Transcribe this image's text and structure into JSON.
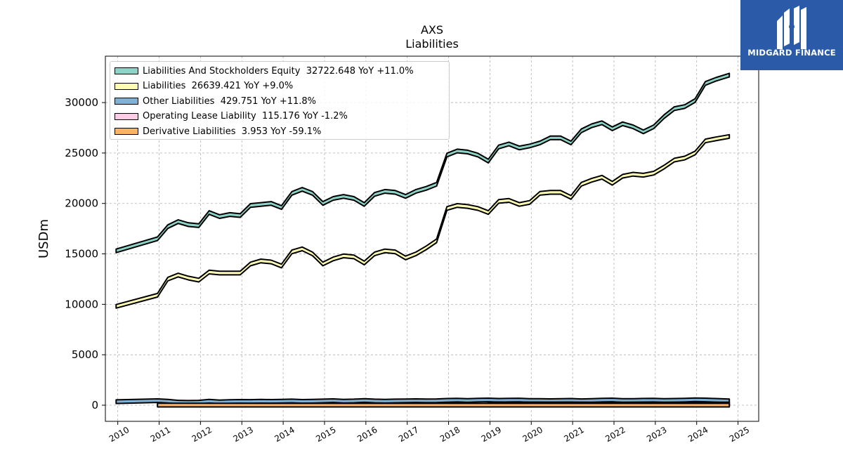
{
  "chart_data": {
    "type": "area",
    "title": "AXS",
    "subtitle": "Liabilities",
    "xlabel": "",
    "ylabel": "USDm",
    "xlim": [
      2009.7,
      2025.5
    ],
    "ylim": [
      -1600,
      34600
    ],
    "x_ticks": [
      "2010",
      "2011",
      "2012",
      "2013",
      "2014",
      "2015",
      "2016",
      "2017",
      "2018",
      "2019",
      "2020",
      "2021",
      "2022",
      "2023",
      "2024",
      "2025"
    ],
    "y_ticks": [
      0,
      5000,
      10000,
      15000,
      20000,
      25000,
      30000
    ],
    "grid": true,
    "legend_position": "top-left",
    "series": [
      {
        "name": "Liabilities And Stockholders Equity",
        "legend_label": "Liabilities And Stockholders Equity  32722.648 YoY +11.0%",
        "color": "#8dd3c7",
        "x": [
          2009.96,
          2010.96,
          2011.21,
          2011.46,
          2011.71,
          2011.96,
          2012.21,
          2012.46,
          2012.71,
          2012.96,
          2013.21,
          2013.46,
          2013.71,
          2013.96,
          2014.21,
          2014.46,
          2014.71,
          2014.96,
          2015.21,
          2015.46,
          2015.71,
          2015.96,
          2016.21,
          2016.46,
          2016.71,
          2016.96,
          2017.21,
          2017.46,
          2017.71,
          2017.96,
          2018.21,
          2018.46,
          2018.71,
          2018.96,
          2019.21,
          2019.46,
          2019.71,
          2019.96,
          2020.21,
          2020.46,
          2020.71,
          2020.96,
          2021.21,
          2021.46,
          2021.71,
          2021.96,
          2022.21,
          2022.46,
          2022.71,
          2022.96,
          2023.21,
          2023.46,
          2023.71,
          2023.96,
          2024.21,
          2024.46,
          2024.79
        ],
        "values": [
          15300,
          16500,
          17700,
          18200,
          17900,
          17800,
          19100,
          18700,
          18900,
          18800,
          19800,
          19900,
          20000,
          19600,
          21000,
          21400,
          21000,
          20000,
          20500,
          20700,
          20500,
          19900,
          20900,
          21200,
          21100,
          20700,
          21200,
          21500,
          21900,
          24800,
          25200,
          25100,
          24800,
          24200,
          25600,
          25900,
          25500,
          25700,
          26000,
          26500,
          26500,
          26000,
          27200,
          27700,
          28000,
          27400,
          27900,
          27600,
          27100,
          27600,
          28600,
          29400,
          29600,
          30200,
          31900,
          32300,
          32722.648
        ]
      },
      {
        "name": "Liabilities",
        "legend_label": "Liabilities  26639.421 YoY +9.0%",
        "color": "#ffffb3",
        "x": [
          2009.96,
          2010.96,
          2011.21,
          2011.46,
          2011.71,
          2011.96,
          2012.21,
          2012.46,
          2012.71,
          2012.96,
          2013.21,
          2013.46,
          2013.71,
          2013.96,
          2014.21,
          2014.46,
          2014.71,
          2014.96,
          2015.21,
          2015.46,
          2015.71,
          2015.96,
          2016.21,
          2016.46,
          2016.71,
          2016.96,
          2017.21,
          2017.46,
          2017.71,
          2017.96,
          2018.21,
          2018.46,
          2018.71,
          2018.96,
          2019.21,
          2019.46,
          2019.71,
          2019.96,
          2020.21,
          2020.46,
          2020.71,
          2020.96,
          2021.21,
          2021.46,
          2021.71,
          2021.96,
          2022.21,
          2022.46,
          2022.71,
          2022.96,
          2023.21,
          2023.46,
          2023.71,
          2023.96,
          2024.21,
          2024.46,
          2024.79
        ],
        "values": [
          9800,
          10900,
          12500,
          12900,
          12600,
          12400,
          13200,
          13100,
          13100,
          13100,
          14000,
          14300,
          14200,
          13800,
          15200,
          15500,
          15000,
          14000,
          14500,
          14800,
          14700,
          14100,
          15000,
          15300,
          15200,
          14600,
          15000,
          15600,
          16300,
          19500,
          19800,
          19700,
          19500,
          19100,
          20200,
          20300,
          19900,
          20100,
          21000,
          21100,
          21100,
          20600,
          21900,
          22300,
          22600,
          22000,
          22700,
          22900,
          22800,
          23000,
          23600,
          24300,
          24500,
          25000,
          26200,
          26400,
          26639.421
        ]
      },
      {
        "name": "Other Liabilities",
        "legend_label": "Other Liabilities  429.751 YoY +11.8%",
        "color": "#80b1d3",
        "x": [
          2009.96,
          2010.96,
          2011.21,
          2011.46,
          2011.71,
          2011.96,
          2012.21,
          2012.46,
          2012.71,
          2012.96,
          2013.21,
          2013.46,
          2013.71,
          2013.96,
          2014.21,
          2014.46,
          2014.71,
          2014.96,
          2015.21,
          2015.46,
          2015.71,
          2015.96,
          2016.21,
          2016.46,
          2016.71,
          2016.96,
          2017.21,
          2017.46,
          2017.71,
          2017.96,
          2018.21,
          2018.46,
          2018.71,
          2018.96,
          2019.21,
          2019.46,
          2019.71,
          2019.96,
          2020.21,
          2020.46,
          2020.71,
          2020.96,
          2021.21,
          2021.46,
          2021.71,
          2021.96,
          2022.21,
          2022.46,
          2022.71,
          2022.96,
          2023.21,
          2023.46,
          2023.71,
          2023.96,
          2024.21,
          2024.46,
          2024.79
        ],
        "values": [
          350,
          450,
          400,
          300,
          280,
          300,
          400,
          320,
          360,
          380,
          370,
          390,
          380,
          400,
          420,
          380,
          390,
          420,
          450,
          400,
          420,
          470,
          420,
          400,
          420,
          430,
          450,
          430,
          440,
          480,
          500,
          470,
          500,
          520,
          480,
          500,
          510,
          470,
          470,
          450,
          470,
          480,
          440,
          460,
          500,
          520,
          460,
          470,
          490,
          500,
          460,
          480,
          500,
          540,
          520,
          480,
          429.751
        ]
      },
      {
        "name": "Operating Lease Liability",
        "legend_label": "Operating Lease Liability  115.176 YoY -1.2%",
        "color": "#fccde5",
        "x": [
          2018.96,
          2019.46,
          2019.96,
          2020.46,
          2020.96,
          2021.46,
          2021.96,
          2022.46,
          2022.96,
          2023.46,
          2023.96,
          2024.46,
          2024.79
        ],
        "values": [
          140,
          135,
          130,
          128,
          125,
          122,
          120,
          118,
          117,
          116,
          116,
          115,
          115.176
        ]
      },
      {
        "name": "Derivative Liabilities",
        "legend_label": "Derivative Liabilities  3.953 YoY -59.1%",
        "color": "#fdb462",
        "x": [
          2010.96,
          2024.79
        ],
        "values": [
          6,
          3.953
        ]
      }
    ]
  },
  "logo": {
    "text": "MIDGARD FINANCE"
  }
}
